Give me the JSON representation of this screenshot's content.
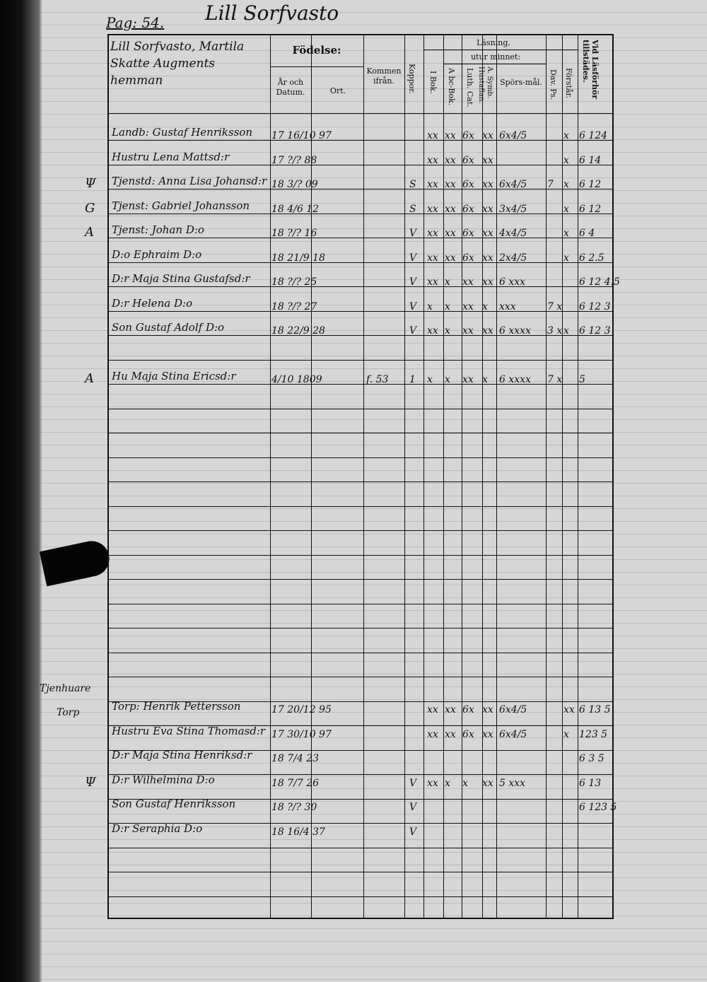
{
  "heading": {
    "village": "Lill Sorfvasto",
    "page": "Pag: 54."
  },
  "place_block": "Lill Sorfvasto, Martila Skatte Augments hemman",
  "columns": {
    "fodelse": "Födelse:",
    "ar": "År och Datum.",
    "ort": "Ort.",
    "kommen": "Kommen ifrån.",
    "koppor": "Koppor.",
    "lasning": "Läsning,",
    "utur_minnet": "utur minnet:",
    "i_bok": "I Bok.",
    "abc": "A bc-Bok.",
    "luth": "Luth. Cat.",
    "symb": "A. Symb. Hustaflan.",
    "spors": "Spörs-mål.",
    "dav": "Dav. Ps.",
    "forstar": "Förstår.",
    "vid": "Vid Läsförhör tillstädes."
  },
  "rows": [
    {
      "margin": "",
      "name": "Landb: Gustaf Henriksson",
      "date": "17 16/10 97",
      "kommen": "",
      "koppor": "",
      "i_bok": "xx",
      "abc": "xx",
      "luth": "6x",
      "symb": "xx",
      "spors": "6x4/5",
      "dav": "",
      "forstar": "x",
      "vid": "6 124"
    },
    {
      "margin": "",
      "name": "Hustru Lena Mattsd:r",
      "date": "17 ?/? 88",
      "kommen": "",
      "koppor": "",
      "i_bok": "xx",
      "abc": "xx",
      "luth": "6x",
      "symb": "xx",
      "spors": "",
      "dav": "",
      "forstar": "x",
      "vid": "6 14"
    },
    {
      "margin": "Ψ",
      "name": "Tjenstd: Anna Lisa Johansd:r",
      "date": "18 3/? 09",
      "kommen": "",
      "koppor": "S",
      "i_bok": "xx",
      "abc": "xx",
      "luth": "6x",
      "symb": "xx",
      "spors": "6x4/5",
      "dav": "7",
      "forstar": "x",
      "vid": "6 12"
    },
    {
      "margin": "G",
      "name": "Tjenst: Gabriel Johansson",
      "date": "18 4/6 12",
      "kommen": "",
      "koppor": "S",
      "i_bok": "xx",
      "abc": "xx",
      "luth": "6x",
      "symb": "xx",
      "spors": "3x4/5",
      "dav": "",
      "forstar": "x",
      "vid": "6 12"
    },
    {
      "margin": "A",
      "name": "Tjenst: Johan D:o",
      "date": "18 ?/? 16",
      "kommen": "",
      "koppor": "V",
      "i_bok": "xx",
      "abc": "xx",
      "luth": "6x",
      "symb": "xx",
      "spors": "4x4/5",
      "dav": "",
      "forstar": "x",
      "vid": "6 4"
    },
    {
      "margin": "",
      "name": "D:o Ephraim D:o",
      "date": "18 21/9 18",
      "kommen": "",
      "koppor": "V",
      "i_bok": "xx",
      "abc": "xx",
      "luth": "6x",
      "symb": "xx",
      "spors": "2x4/5",
      "dav": "",
      "forstar": "x",
      "vid": "6 2.5"
    },
    {
      "margin": "",
      "name": "D:r Maja Stina Gustafsd:r",
      "date": "18 ?/? 25",
      "kommen": "",
      "koppor": "V",
      "i_bok": "xx",
      "abc": "x",
      "luth": "xx",
      "symb": "xx",
      "spors": "6 xxx",
      "dav": "",
      "forstar": "",
      "vid": "6 12 4.5"
    },
    {
      "margin": "",
      "name": "D:r Helena D:o",
      "date": "18 ?/? 27",
      "kommen": "",
      "koppor": "V",
      "i_bok": "x",
      "abc": "x",
      "luth": "xx",
      "symb": "x",
      "spors": "xxx",
      "dav": "7 x",
      "forstar": "",
      "vid": "6 12 3"
    },
    {
      "margin": "",
      "name": "Son Gustaf Adolf D:o",
      "date": "18 22/9 28",
      "kommen": "",
      "koppor": "V",
      "i_bok": "xx",
      "abc": "x",
      "luth": "xx",
      "symb": "xx",
      "spors": "6 xxxx",
      "dav": "3 x",
      "forstar": "x",
      "vid": "6 12 3"
    },
    {
      "margin": "",
      "name": "",
      "date": "",
      "kommen": "",
      "koppor": "",
      "i_bok": "",
      "abc": "",
      "luth": "",
      "symb": "",
      "spors": "",
      "dav": "",
      "forstar": "",
      "vid": ""
    },
    {
      "margin": "A",
      "name": "Hu Maja Stina Ericsd:r",
      "date": "4/10 1809",
      "kommen": "f. 53",
      "koppor": "1",
      "i_bok": "x",
      "abc": "x",
      "luth": "xx",
      "symb": "x",
      "spors": "6 xxxx",
      "dav": "7 x",
      "forstar": "",
      "vid": "5"
    }
  ],
  "servants_label": "Tjenhuare",
  "croft_label": "Torp",
  "rows2": [
    {
      "margin": "",
      "name": "Torp: Henrik Pettersson",
      "date": "17 20/12 95",
      "koppor": "",
      "i_bok": "xx",
      "abc": "xx",
      "luth": "6x",
      "symb": "xx",
      "spors": "6x4/5",
      "dav": "",
      "forstar": "xx",
      "vid": "6 13 5"
    },
    {
      "margin": "",
      "name": "Hustru Eva Stina Thomasd:r",
      "date": "17 30/10 97",
      "koppor": "",
      "i_bok": "xx",
      "abc": "xx",
      "luth": "6x",
      "symb": "xx",
      "spors": "6x4/5",
      "dav": "",
      "forstar": "x",
      "vid": "123 5"
    },
    {
      "margin": "",
      "name": "D:r Maja Stina Henriksd:r",
      "date": "18 7/4 23",
      "koppor": "",
      "i_bok": "",
      "abc": "",
      "luth": "",
      "symb": "",
      "spors": "",
      "dav": "",
      "forstar": "",
      "vid": "6 3 5"
    },
    {
      "margin": "Ψ",
      "name": "D:r Wilhelmina D:o",
      "date": "18 7/7 26",
      "koppor": "V",
      "i_bok": "xx",
      "abc": "x",
      "luth": "x",
      "symb": "xx",
      "spors": "5 xxx",
      "dav": "",
      "forstar": "",
      "vid": "6 13"
    },
    {
      "margin": "",
      "name": "Son Gustaf Henriksson",
      "date": "18 ?/? 30",
      "koppor": "V",
      "i_bok": "",
      "abc": "",
      "luth": "",
      "symb": "",
      "spors": "",
      "dav": "",
      "forstar": "",
      "vid": "6 123 5"
    },
    {
      "margin": "",
      "name": "D:r Seraphia D:o",
      "date": "18 16/4 37",
      "koppor": "V",
      "i_bok": "",
      "abc": "",
      "luth": "",
      "symb": "",
      "spors": "",
      "dav": "",
      "forstar": "",
      "vid": ""
    }
  ]
}
